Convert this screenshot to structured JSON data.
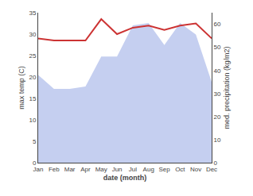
{
  "chart_data": {
    "type": "line",
    "x_label": "date (month)",
    "y_label": "max temp (C)",
    "y2_label": "med. precipitation (kg/m2)",
    "categories": [
      "Jan",
      "Feb",
      "Mar",
      "Apr",
      "May",
      "Jun",
      "Jul",
      "Aug",
      "Sep",
      "Oct",
      "Nov",
      "Dec"
    ],
    "series": [
      {
        "type": "area",
        "axis": "y2",
        "color": "#c5cff0",
        "values": [
          38.0,
          32.0,
          32.0,
          33.0,
          46.0,
          46.0,
          59.5,
          60.5,
          51.0,
          60.5,
          55.5,
          35.0
        ]
      },
      {
        "type": "line",
        "color": "#cc3333",
        "values": [
          29.0,
          28.5,
          28.5,
          28.5,
          33.5,
          30.0,
          31.5,
          32.0,
          31.0,
          32.0,
          32.5,
          29.0
        ]
      }
    ],
    "ylim": [
      0,
      35
    ],
    "yticks": [
      0,
      5,
      10,
      15,
      20,
      25,
      30,
      35
    ],
    "y2lim": [
      0,
      65
    ],
    "y2ticks": [
      0,
      10,
      20,
      30,
      40,
      50,
      60
    ],
    "grid": false
  }
}
